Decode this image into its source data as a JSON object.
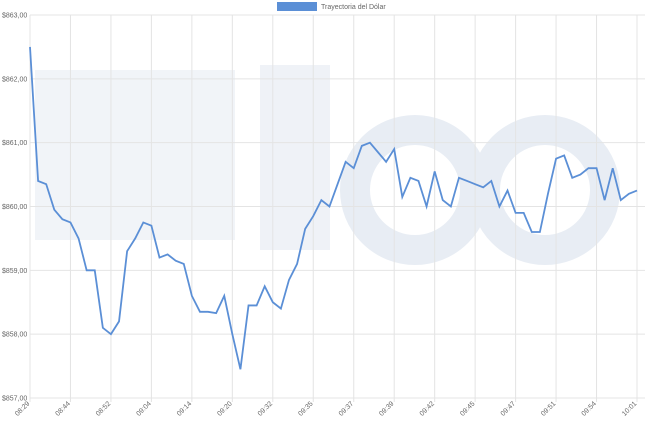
{
  "chart_data": {
    "type": "line",
    "legend_position": "top",
    "grid": true,
    "categories": [
      "08:29",
      null,
      null,
      null,
      null,
      "08:44",
      null,
      null,
      null,
      null,
      "08:52",
      null,
      null,
      null,
      null,
      "09:04",
      null,
      null,
      null,
      null,
      "09:14",
      null,
      null,
      null,
      null,
      "09:20",
      null,
      null,
      null,
      null,
      "09:32",
      null,
      null,
      null,
      null,
      "09:35",
      null,
      null,
      null,
      null,
      "09:37",
      null,
      null,
      null,
      null,
      "09:39",
      null,
      null,
      null,
      null,
      "09:42",
      null,
      null,
      null,
      null,
      "09:45",
      null,
      null,
      null,
      null,
      "09:47",
      null,
      null,
      null,
      null,
      "09:51",
      null,
      null,
      null,
      null,
      "09:54",
      null,
      null,
      null,
      null,
      "10:01"
    ],
    "series": [
      {
        "name": "Trayectoria del Dólar",
        "color": "#5b8fd6",
        "values": [
          862.5,
          860.4,
          860.35,
          859.95,
          859.8,
          859.75,
          859.5,
          859.0,
          859.0,
          858.1,
          858.0,
          858.2,
          859.3,
          859.5,
          859.75,
          859.7,
          859.2,
          859.25,
          859.15,
          859.1,
          858.6,
          858.35,
          858.35,
          858.33,
          858.6,
          858.0,
          857.45,
          858.45,
          858.45,
          858.75,
          858.5,
          858.4,
          858.85,
          859.1,
          859.65,
          859.85,
          860.1,
          860.0,
          860.35,
          860.7,
          860.6,
          860.95,
          861.0,
          860.85,
          860.7,
          860.9,
          860.15,
          860.45,
          860.4,
          860.0,
          860.55,
          860.1,
          860.0,
          860.45,
          860.4,
          860.35,
          860.3,
          860.4,
          860.0,
          860.25,
          859.9,
          859.9,
          859.6,
          859.6,
          860.2,
          860.75,
          860.8,
          860.45,
          860.5,
          860.6,
          860.6,
          860.1,
          860.6,
          860.1,
          860.2,
          860.25
        ]
      }
    ],
    "ylim": [
      857,
      863
    ],
    "yticks": [
      {
        "value": 857,
        "label": "$857,00"
      },
      {
        "value": 858,
        "label": "$858,00"
      },
      {
        "value": 859,
        "label": "$859,00"
      },
      {
        "value": 860,
        "label": "$860,00"
      },
      {
        "value": 861,
        "label": "$861,00"
      },
      {
        "value": 862,
        "label": "$862,00"
      },
      {
        "value": 863,
        "label": "$863,00"
      }
    ]
  }
}
